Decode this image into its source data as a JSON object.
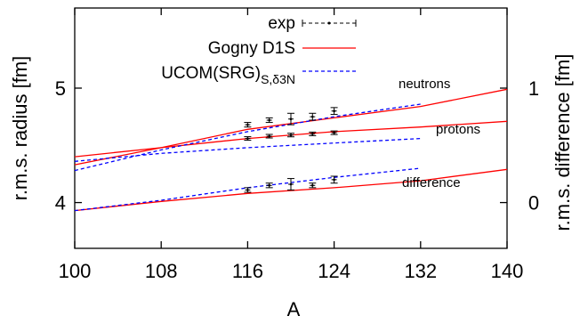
{
  "chart_data": {
    "type": "line",
    "xlabel": "A",
    "ylabel_left": "r.m.s. radius [fm]",
    "ylabel_right": "r.m.s. difference [fm]",
    "xlim": [
      100,
      140
    ],
    "ylim_left": [
      3.6,
      5.7
    ],
    "ylim_right": [
      -0.4,
      1.7
    ],
    "x_ticks": [
      "100",
      "108",
      "116",
      "124",
      "132",
      "140"
    ],
    "y_ticks_left": [
      "4",
      "5"
    ],
    "y_ticks_right": [
      "0",
      "1"
    ],
    "grid": false,
    "legend_position": "top-left",
    "legend": {
      "exp": "exp",
      "gogny": "Gogny D1S",
      "ucom_main": "UCOM(SRG)",
      "ucom_sub": "S,δ3N"
    },
    "annotations": {
      "neutrons": "neutrons",
      "protons": "protons",
      "difference": "difference"
    },
    "colors": {
      "gogny": "#ff0000",
      "ucom": "#0000ff",
      "exp": "#000000"
    },
    "series": [
      {
        "key": "gogny",
        "group": "neutrons",
        "x": [
          100,
          108,
          116,
          124,
          132,
          140
        ],
        "y": [
          4.33,
          4.48,
          4.64,
          4.74,
          4.84,
          4.99
        ]
      },
      {
        "key": "gogny",
        "group": "protons",
        "x": [
          100,
          108,
          116,
          124,
          132,
          140
        ],
        "y": [
          4.4,
          4.48,
          4.56,
          4.62,
          4.66,
          4.71
        ]
      },
      {
        "key": "gogny",
        "group": "difference",
        "x": [
          100,
          108,
          116,
          124,
          132,
          140
        ],
        "y": [
          -0.07,
          0.01,
          0.08,
          0.13,
          0.19,
          0.29
        ]
      },
      {
        "key": "ucom",
        "group": "neutrons",
        "x": [
          100,
          108,
          116,
          124,
          132
        ],
        "y": [
          4.28,
          4.46,
          4.62,
          4.75,
          4.86
        ]
      },
      {
        "key": "ucom",
        "group": "protons",
        "x": [
          100,
          108,
          116,
          124,
          132
        ],
        "y": [
          4.36,
          4.43,
          4.48,
          4.52,
          4.56
        ]
      },
      {
        "key": "ucom",
        "group": "difference",
        "x": [
          100,
          108,
          116,
          124,
          132
        ],
        "y": [
          -0.07,
          0.02,
          0.13,
          0.22,
          0.3
        ]
      }
    ],
    "exp_points": {
      "neutrons": {
        "x": [
          116,
          118,
          120,
          122,
          124
        ],
        "y": [
          4.68,
          4.72,
          4.73,
          4.75,
          4.8
        ],
        "err": [
          0.02,
          0.02,
          0.05,
          0.03,
          0.03
        ]
      },
      "protons": {
        "x": [
          116,
          118,
          120,
          122,
          124
        ],
        "y": [
          4.56,
          4.58,
          4.59,
          4.6,
          4.61
        ],
        "err": [
          0.01,
          0.01,
          0.01,
          0.01,
          0.01
        ]
      },
      "difference": {
        "x": [
          116,
          118,
          120,
          122,
          124
        ],
        "y": [
          0.11,
          0.15,
          0.16,
          0.15,
          0.2
        ],
        "err": [
          0.02,
          0.02,
          0.05,
          0.02,
          0.03
        ]
      }
    }
  }
}
